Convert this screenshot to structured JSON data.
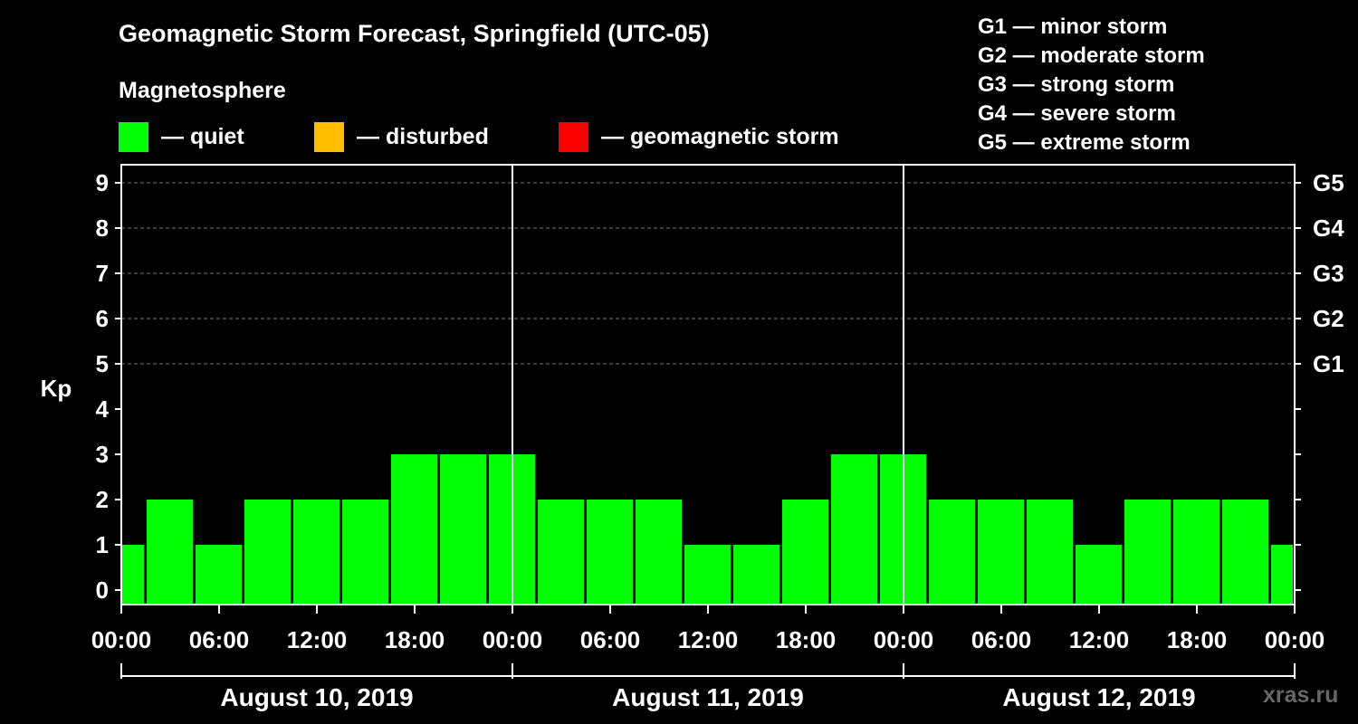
{
  "title": "Geomagnetic Storm Forecast, Springfield (UTC-05)",
  "subtitle": "Magnetosphere",
  "legend": [
    {
      "label": "— quiet",
      "color": "#00ff00"
    },
    {
      "label": "— disturbed",
      "color": "#ffbf00"
    },
    {
      "label": "— geomagnetic storm",
      "color": "#ff0000"
    }
  ],
  "g_legend": [
    "G1 — minor storm",
    "G2 — moderate storm",
    "G3 — strong storm",
    "G4 — severe storm",
    "G5 — extreme storm"
  ],
  "watermark": "xras.ru",
  "chart_data": {
    "type": "bar",
    "title": "Geomagnetic Storm Forecast, Springfield (UTC-05)",
    "ylabel": "Kp",
    "ylim": [
      0,
      9
    ],
    "yticks": [
      "0",
      "1",
      "2",
      "3",
      "4",
      "5",
      "6",
      "7",
      "8",
      "9"
    ],
    "right_ticks": [
      {
        "kp": 5,
        "label": "G1"
      },
      {
        "kp": 6,
        "label": "G2"
      },
      {
        "kp": 7,
        "label": "G3"
      },
      {
        "kp": 8,
        "label": "G4"
      },
      {
        "kp": 9,
        "label": "G5"
      }
    ],
    "x_tick_labels": [
      "00:00",
      "06:00",
      "12:00",
      "18:00",
      "00:00",
      "06:00",
      "12:00",
      "18:00",
      "00:00",
      "06:00",
      "12:00",
      "18:00",
      "00:00"
    ],
    "days": [
      "August 10, 2019",
      "August 11, 2019",
      "August 12, 2019"
    ],
    "bar_color": "#00ff00",
    "bars": [
      {
        "start_hour": 0,
        "end_hour": 1.5,
        "kp": 1
      },
      {
        "start_hour": 1.5,
        "end_hour": 4.5,
        "kp": 2
      },
      {
        "start_hour": 4.5,
        "end_hour": 7.5,
        "kp": 1
      },
      {
        "start_hour": 7.5,
        "end_hour": 10.5,
        "kp": 2
      },
      {
        "start_hour": 10.5,
        "end_hour": 13.5,
        "kp": 2
      },
      {
        "start_hour": 13.5,
        "end_hour": 16.5,
        "kp": 2
      },
      {
        "start_hour": 16.5,
        "end_hour": 19.5,
        "kp": 3
      },
      {
        "start_hour": 19.5,
        "end_hour": 22.5,
        "kp": 3
      },
      {
        "start_hour": 22.5,
        "end_hour": 25.5,
        "kp": 3
      },
      {
        "start_hour": 25.5,
        "end_hour": 28.5,
        "kp": 2
      },
      {
        "start_hour": 28.5,
        "end_hour": 31.5,
        "kp": 2
      },
      {
        "start_hour": 31.5,
        "end_hour": 34.5,
        "kp": 2
      },
      {
        "start_hour": 34.5,
        "end_hour": 37.5,
        "kp": 1
      },
      {
        "start_hour": 37.5,
        "end_hour": 40.5,
        "kp": 1
      },
      {
        "start_hour": 40.5,
        "end_hour": 43.5,
        "kp": 2
      },
      {
        "start_hour": 43.5,
        "end_hour": 46.5,
        "kp": 3
      },
      {
        "start_hour": 46.5,
        "end_hour": 49.5,
        "kp": 3
      },
      {
        "start_hour": 49.5,
        "end_hour": 52.5,
        "kp": 2
      },
      {
        "start_hour": 52.5,
        "end_hour": 55.5,
        "kp": 2
      },
      {
        "start_hour": 55.5,
        "end_hour": 58.5,
        "kp": 2
      },
      {
        "start_hour": 58.5,
        "end_hour": 61.5,
        "kp": 1
      },
      {
        "start_hour": 61.5,
        "end_hour": 64.5,
        "kp": 2
      },
      {
        "start_hour": 64.5,
        "end_hour": 67.5,
        "kp": 2
      },
      {
        "start_hour": 67.5,
        "end_hour": 70.5,
        "kp": 2
      },
      {
        "start_hour": 70.5,
        "end_hour": 72,
        "kp": 1
      }
    ]
  }
}
